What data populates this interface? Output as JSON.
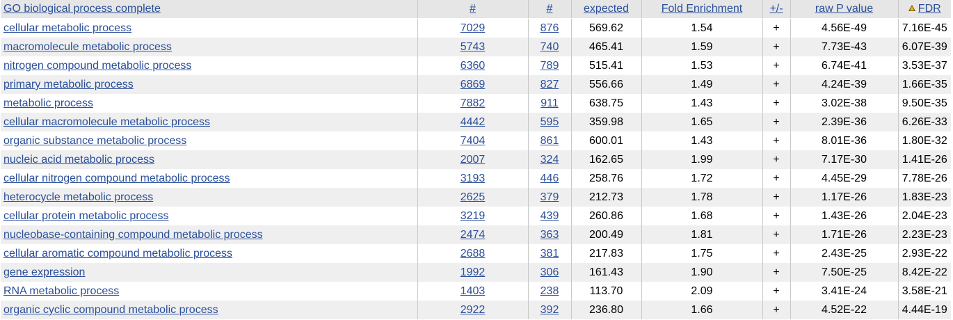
{
  "header": {
    "col_process": "GO biological process complete",
    "col_ref_count": "#",
    "col_input_count": "#",
    "col_expected": "expected",
    "col_fold": "Fold Enrichment",
    "col_sign": "+/-",
    "col_raw_p": "raw P value",
    "col_fdr": "FDR",
    "fdr_sort_icon": "sort-ascending-triangle-icon"
  },
  "rows": [
    {
      "process": "cellular metabolic process",
      "ref": "7029",
      "input": "876",
      "expected": "569.62",
      "fold": "1.54",
      "sign": "+",
      "raw_p": "4.56E-49",
      "fdr": "7.16E-45"
    },
    {
      "process": "macromolecule metabolic process",
      "ref": "5743",
      "input": "740",
      "expected": "465.41",
      "fold": "1.59",
      "sign": "+",
      "raw_p": "7.73E-43",
      "fdr": "6.07E-39"
    },
    {
      "process": "nitrogen compound metabolic process",
      "ref": "6360",
      "input": "789",
      "expected": "515.41",
      "fold": "1.53",
      "sign": "+",
      "raw_p": "6.74E-41",
      "fdr": "3.53E-37"
    },
    {
      "process": "primary metabolic process",
      "ref": "6869",
      "input": "827",
      "expected": "556.66",
      "fold": "1.49",
      "sign": "+",
      "raw_p": "4.24E-39",
      "fdr": "1.66E-35"
    },
    {
      "process": "metabolic process",
      "ref": "7882",
      "input": "911",
      "expected": "638.75",
      "fold": "1.43",
      "sign": "+",
      "raw_p": "3.02E-38",
      "fdr": "9.50E-35"
    },
    {
      "process": "cellular macromolecule metabolic process",
      "ref": "4442",
      "input": "595",
      "expected": "359.98",
      "fold": "1.65",
      "sign": "+",
      "raw_p": "2.39E-36",
      "fdr": "6.26E-33"
    },
    {
      "process": "organic substance metabolic process",
      "ref": "7404",
      "input": "861",
      "expected": "600.01",
      "fold": "1.43",
      "sign": "+",
      "raw_p": "8.01E-36",
      "fdr": "1.80E-32"
    },
    {
      "process": "nucleic acid metabolic process",
      "ref": "2007",
      "input": "324",
      "expected": "162.65",
      "fold": "1.99",
      "sign": "+",
      "raw_p": "7.17E-30",
      "fdr": "1.41E-26"
    },
    {
      "process": "cellular nitrogen compound metabolic process",
      "ref": "3193",
      "input": "446",
      "expected": "258.76",
      "fold": "1.72",
      "sign": "+",
      "raw_p": "4.45E-29",
      "fdr": "7.78E-26"
    },
    {
      "process": "heterocycle metabolic process",
      "ref": "2625",
      "input": "379",
      "expected": "212.73",
      "fold": "1.78",
      "sign": "+",
      "raw_p": "1.17E-26",
      "fdr": "1.83E-23"
    },
    {
      "process": "cellular protein metabolic process",
      "ref": "3219",
      "input": "439",
      "expected": "260.86",
      "fold": "1.68",
      "sign": "+",
      "raw_p": "1.43E-26",
      "fdr": "2.04E-23"
    },
    {
      "process": "nucleobase-containing compound metabolic process",
      "ref": "2474",
      "input": "363",
      "expected": "200.49",
      "fold": "1.81",
      "sign": "+",
      "raw_p": "1.71E-26",
      "fdr": "2.23E-23"
    },
    {
      "process": "cellular aromatic compound metabolic process",
      "ref": "2688",
      "input": "381",
      "expected": "217.83",
      "fold": "1.75",
      "sign": "+",
      "raw_p": "2.43E-25",
      "fdr": "2.93E-22"
    },
    {
      "process": "gene expression",
      "ref": "1992",
      "input": "306",
      "expected": "161.43",
      "fold": "1.90",
      "sign": "+",
      "raw_p": "7.50E-25",
      "fdr": "8.42E-22"
    },
    {
      "process": "RNA metabolic process",
      "ref": "1403",
      "input": "238",
      "expected": "113.70",
      "fold": "2.09",
      "sign": "+",
      "raw_p": "3.41E-24",
      "fdr": "3.58E-21"
    },
    {
      "process": "organic cyclic compound metabolic process",
      "ref": "2922",
      "input": "392",
      "expected": "236.80",
      "fold": "1.66",
      "sign": "+",
      "raw_p": "4.52E-22",
      "fdr": "4.44E-19"
    }
  ],
  "colors": {
    "link": "#2a4f9a",
    "header_bg": "#e6e6e6",
    "stripe_bg": "#efefef"
  }
}
